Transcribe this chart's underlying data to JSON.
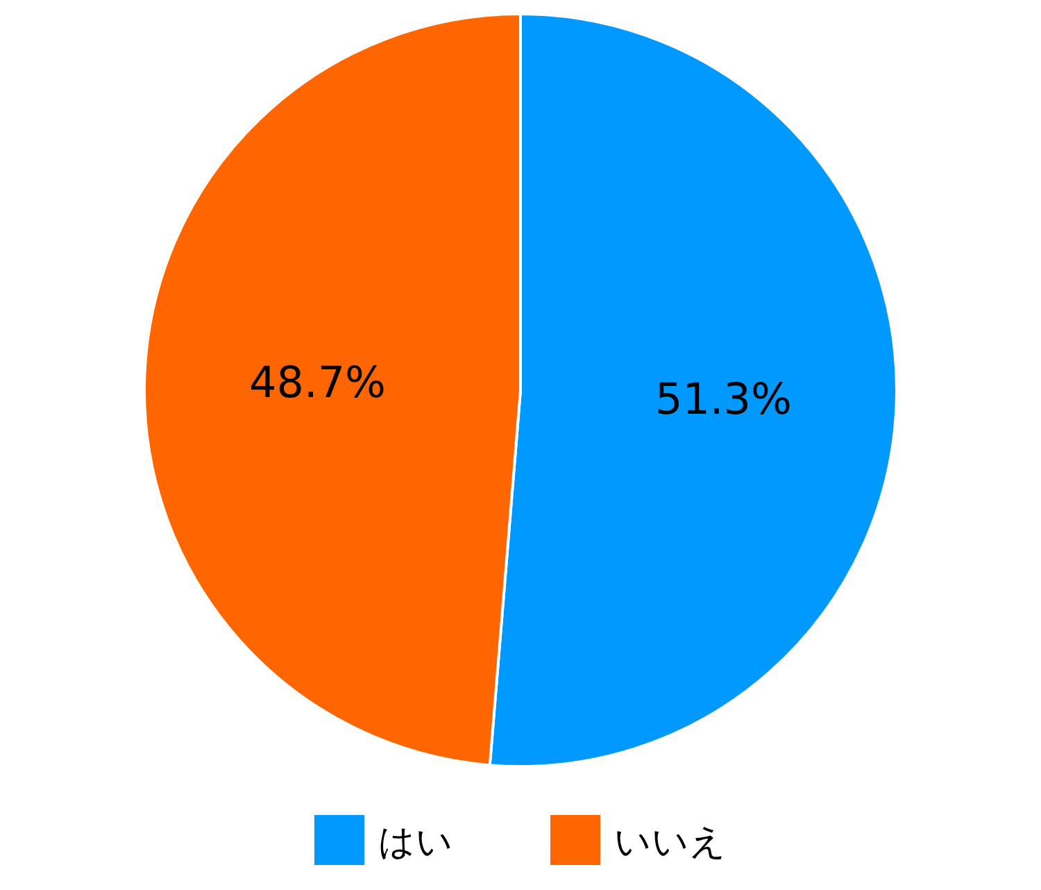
{
  "chart_data": {
    "type": "pie",
    "categories": [
      "はい",
      "いいえ"
    ],
    "values": [
      51.3,
      48.7
    ],
    "colors": [
      "#0099ff",
      "#ff6600"
    ],
    "value_labels": [
      "51.3%",
      "48.7%"
    ],
    "legend": "bottom"
  }
}
